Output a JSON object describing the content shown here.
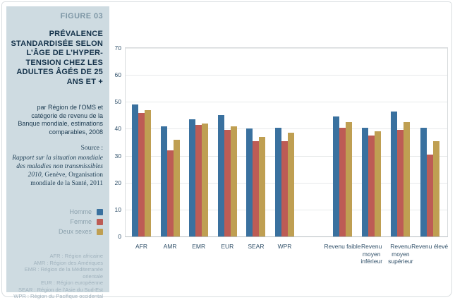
{
  "sidebar": {
    "figure_label": "FIGURE 03",
    "title": "PRÉVALENCE STANDARDISÉE SELON L’ÂGE DE L’HYPER-TENSION CHEZ LES ADULTES ÂGÉS DE 25 ANS ET +",
    "subtitle": "par Région de l’OMS et catégorie de revenu de la Banque mondiale, estimations comparables, 2008",
    "source_label": "Source :",
    "source_citation_italic": "Rapport sur la situation mondiale des maladies non transmissibles 2010,",
    "source_citation_regular": " Genève, Organisation mondiale de la Santé, 2011",
    "legend": [
      {
        "label": "Homme",
        "color": "#3a719f"
      },
      {
        "label": "Femme",
        "color": "#bd5c55"
      },
      {
        "label": "Deux sexes",
        "color": "#bf9f52"
      }
    ],
    "abbreviations": [
      "AFR : Région africaine",
      "AMR : Région des Amériques",
      "EMR : Région de la Méditerranée orientale",
      "EUR : Région européenne",
      "SEAR : Région de l’Asie du Sud-Est",
      "WPR : Région du Pacifique occidental"
    ]
  },
  "chart_data": {
    "type": "bar",
    "title": "",
    "xlabel": "",
    "ylabel": "",
    "ylim": [
      0,
      70
    ],
    "ytick_step": 10,
    "grid": true,
    "legend_position": "left-sidebar",
    "section_split_index": 6,
    "categories": [
      "AFR",
      "AMR",
      "EMR",
      "EUR",
      "SEAR",
      "WPR",
      "Revenu faible",
      "Revenu moyen inférieur",
      "Revenu moyen supérieur",
      "Revenu élevé"
    ],
    "series": [
      {
        "name": "Homme",
        "color": "#3a719f",
        "values": [
          49,
          41,
          43.5,
          45,
          40,
          40.5,
          44.5,
          40.5,
          46.5,
          40.5
        ]
      },
      {
        "name": "Femme",
        "color": "#bd5c55",
        "values": [
          46,
          32,
          41.5,
          39.5,
          35.5,
          35.5,
          40.5,
          37.5,
          39.5,
          30.5
        ]
      },
      {
        "name": "Deux sexes",
        "color": "#bf9f52",
        "values": [
          47,
          36,
          42,
          41,
          37,
          38.5,
          42.5,
          39,
          42.5,
          35.5
        ]
      }
    ]
  }
}
